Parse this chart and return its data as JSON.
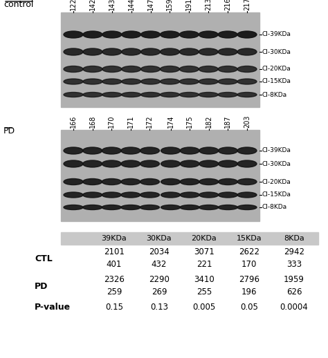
{
  "control_label": "control",
  "pd_label": "PD",
  "control_lanes": [
    "122",
    "142",
    "143",
    "144",
    "147",
    "159",
    "191",
    "213",
    "216",
    "217"
  ],
  "pd_lanes": [
    "166",
    "168",
    "170",
    "171",
    "172",
    "174",
    "175",
    "182",
    "187",
    "203"
  ],
  "band_labels": [
    "CI-39KDa",
    "CI-30KDa",
    "CI-20KDa",
    "CI-15KDa",
    "CI-8KDa"
  ],
  "blot_bg_color": "#b0b0b0",
  "band_color_dark": "#1a1a1a",
  "band_color_medium": "#2a2a2a",
  "table_header_bg": "#c8c8c8",
  "table_header_labels": [
    "39KDa",
    "30KDa",
    "20KDa",
    "15KDa",
    "8KDa"
  ],
  "row_labels": [
    "CTL",
    "PD",
    "P-value"
  ],
  "ctl_row1": [
    "2101",
    "2034",
    "3071",
    "2622",
    "2942"
  ],
  "ctl_row2": [
    "401",
    "432",
    "221",
    "170",
    "333"
  ],
  "pd_row1": [
    "2326",
    "2290",
    "3410",
    "2796",
    "1959"
  ],
  "pd_row2": [
    "259",
    "269",
    "255",
    "196",
    "626"
  ],
  "pval_row": [
    "0.15",
    "0.13",
    "0.005",
    "0.05",
    "0.0004"
  ],
  "fig_width": 4.74,
  "fig_height": 5.18,
  "dpi": 100
}
